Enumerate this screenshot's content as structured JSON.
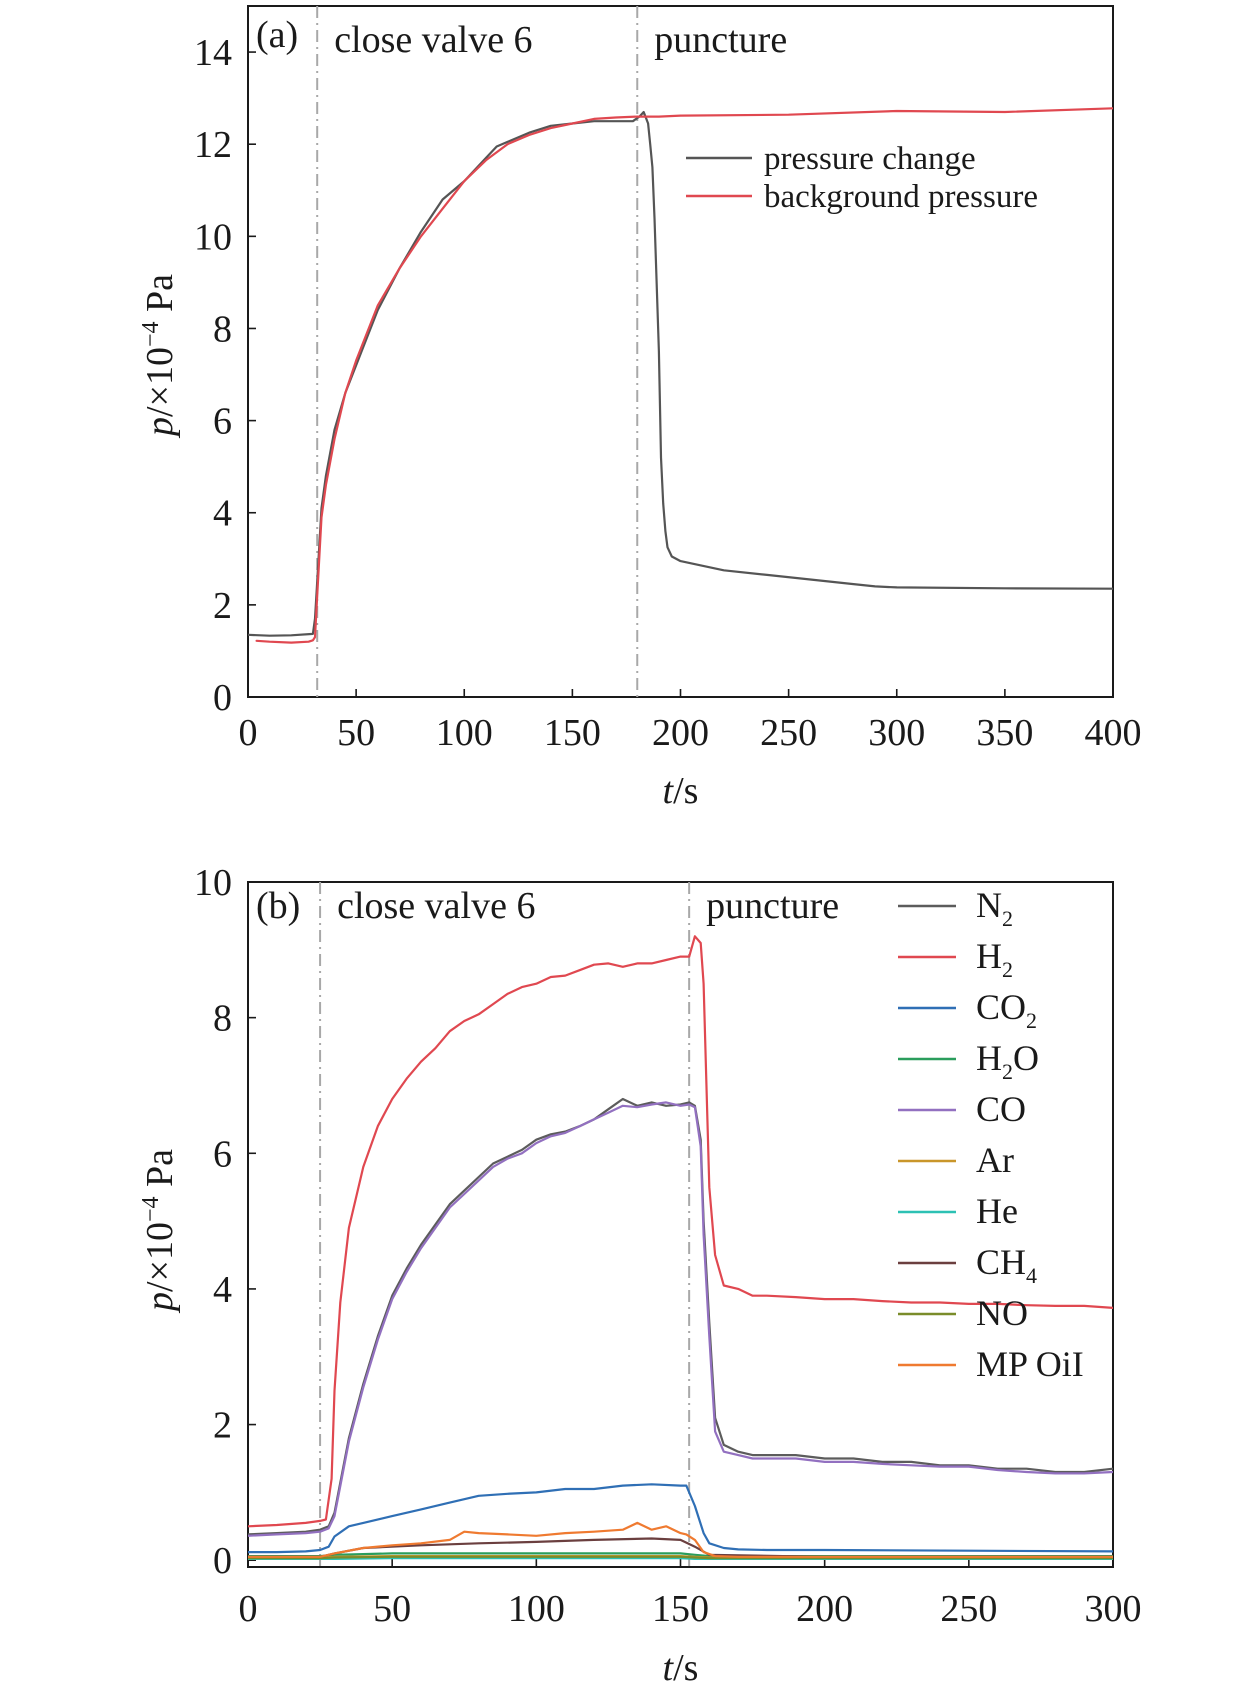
{
  "chart_data": [
    {
      "type": "line",
      "panel_label": "(a)",
      "xlabel_italic": "t",
      "xlabel_rest": "/s",
      "ylabel_italic": "p",
      "ylabel_rest": "/×10",
      "ylabel_exp": "−4",
      "ylabel_unit": " Pa",
      "xlim": [
        0,
        400
      ],
      "ylim": [
        0,
        15
      ],
      "xticks": [
        "0",
        "50",
        "100",
        "150",
        "200",
        "250",
        "300",
        "350",
        "400"
      ],
      "yticks": [
        "0",
        "2",
        "4",
        "6",
        "8",
        "10",
        "12",
        "14"
      ],
      "annotations": [
        {
          "label": "close valve 6",
          "x": 32
        },
        {
          "label": "puncture",
          "x": 180
        }
      ],
      "legend": {
        "position": "top-right"
      },
      "series": [
        {
          "name": "pressure change",
          "color": "#555555",
          "x": [
            0,
            10,
            20,
            30,
            31,
            32,
            34,
            36,
            38,
            40,
            45,
            50,
            55,
            60,
            70,
            80,
            90,
            100,
            110,
            115,
            120,
            130,
            140,
            150,
            160,
            170,
            178,
            181,
            183,
            185,
            186,
            187,
            188,
            190,
            191,
            192,
            193,
            194,
            196,
            200,
            210,
            220,
            240,
            260,
            280,
            290,
            300,
            350,
            400
          ],
          "y": [
            1.35,
            1.33,
            1.34,
            1.37,
            1.7,
            2.5,
            4.1,
            4.8,
            5.3,
            5.8,
            6.6,
            7.2,
            7.8,
            8.4,
            9.3,
            10.1,
            10.8,
            11.2,
            11.7,
            11.95,
            12.05,
            12.25,
            12.4,
            12.45,
            12.5,
            12.5,
            12.5,
            12.6,
            12.7,
            12.45,
            12.0,
            11.5,
            10.4,
            7.5,
            5.2,
            4.2,
            3.6,
            3.25,
            3.05,
            2.95,
            2.85,
            2.75,
            2.65,
            2.55,
            2.45,
            2.4,
            2.38,
            2.36,
            2.35
          ]
        },
        {
          "name": "background pressure",
          "color": "#e04850",
          "x": [
            4,
            10,
            20,
            28,
            30,
            31,
            32,
            34,
            36,
            38,
            40,
            45,
            50,
            55,
            60,
            70,
            80,
            90,
            100,
            110,
            120,
            130,
            140,
            150,
            160,
            170,
            180,
            190,
            200,
            250,
            300,
            350,
            400
          ],
          "y": [
            1.22,
            1.2,
            1.18,
            1.2,
            1.23,
            1.3,
            2.2,
            3.9,
            4.6,
            5.1,
            5.6,
            6.6,
            7.3,
            7.9,
            8.5,
            9.3,
            10.0,
            10.6,
            11.2,
            11.65,
            12.0,
            12.2,
            12.35,
            12.45,
            12.55,
            12.58,
            12.6,
            12.6,
            12.62,
            12.64,
            12.72,
            12.7,
            12.78
          ]
        }
      ]
    },
    {
      "type": "line",
      "panel_label": "(b)",
      "xlabel_italic": "t",
      "xlabel_rest": "/s",
      "ylabel_italic": "p",
      "ylabel_rest": "/×10",
      "ylabel_exp": "−4",
      "ylabel_unit": " Pa",
      "xlim": [
        0,
        300
      ],
      "ylim": [
        -0.1,
        10
      ],
      "xticks": [
        "0",
        "50",
        "100",
        "150",
        "200",
        "250",
        "300"
      ],
      "yticks": [
        "0",
        "2",
        "4",
        "6",
        "8",
        "10"
      ],
      "annotations": [
        {
          "label": "close valve 6",
          "x": 25
        },
        {
          "label": "puncture",
          "x": 153
        }
      ],
      "legend": {
        "position": "top-right"
      },
      "series": [
        {
          "name": "N",
          "sub": "2",
          "suffix": "",
          "color": "#5c5c5c",
          "x": [
            0,
            10,
            20,
            25,
            28,
            30,
            35,
            40,
            45,
            50,
            55,
            60,
            65,
            70,
            75,
            80,
            85,
            90,
            95,
            100,
            105,
            110,
            115,
            120,
            125,
            130,
            135,
            140,
            145,
            150,
            153,
            155,
            157,
            158,
            160,
            162,
            165,
            170,
            175,
            180,
            190,
            200,
            210,
            220,
            230,
            240,
            250,
            260,
            270,
            280,
            290,
            300
          ],
          "y": [
            0.38,
            0.4,
            0.42,
            0.45,
            0.5,
            0.7,
            1.8,
            2.6,
            3.3,
            3.9,
            4.3,
            4.65,
            4.95,
            5.25,
            5.45,
            5.65,
            5.85,
            5.95,
            6.05,
            6.2,
            6.28,
            6.32,
            6.4,
            6.5,
            6.65,
            6.8,
            6.7,
            6.75,
            6.7,
            6.72,
            6.75,
            6.7,
            6.2,
            5.0,
            3.5,
            2.1,
            1.7,
            1.6,
            1.55,
            1.55,
            1.55,
            1.5,
            1.5,
            1.45,
            1.45,
            1.4,
            1.4,
            1.35,
            1.35,
            1.3,
            1.3,
            1.35
          ]
        },
        {
          "name": "H",
          "sub": "2",
          "suffix": "",
          "color": "#e04850",
          "x": [
            0,
            10,
            20,
            25,
            27,
            29,
            30,
            32,
            35,
            40,
            45,
            50,
            55,
            60,
            65,
            70,
            75,
            80,
            85,
            90,
            95,
            100,
            105,
            110,
            115,
            120,
            125,
            130,
            135,
            140,
            145,
            150,
            153,
            155,
            157,
            158,
            160,
            162,
            165,
            170,
            175,
            180,
            190,
            200,
            210,
            220,
            230,
            240,
            250,
            260,
            270,
            280,
            290,
            300
          ],
          "y": [
            0.5,
            0.52,
            0.55,
            0.58,
            0.6,
            1.2,
            2.5,
            3.8,
            4.9,
            5.8,
            6.4,
            6.8,
            7.1,
            7.35,
            7.55,
            7.8,
            7.95,
            8.05,
            8.2,
            8.35,
            8.45,
            8.5,
            8.6,
            8.62,
            8.7,
            8.78,
            8.8,
            8.75,
            8.8,
            8.8,
            8.85,
            8.9,
            8.9,
            9.2,
            9.1,
            8.5,
            5.5,
            4.5,
            4.05,
            4.0,
            3.9,
            3.9,
            3.88,
            3.85,
            3.85,
            3.82,
            3.8,
            3.8,
            3.78,
            3.78,
            3.76,
            3.75,
            3.75,
            3.72
          ]
        },
        {
          "name": "CO",
          "sub": "2",
          "suffix": "",
          "color": "#2f6fb5",
          "x": [
            0,
            10,
            20,
            25,
            28,
            30,
            35,
            40,
            50,
            60,
            70,
            80,
            90,
            100,
            110,
            120,
            130,
            140,
            150,
            152,
            155,
            158,
            160,
            165,
            170,
            180,
            200,
            250,
            300
          ],
          "y": [
            0.12,
            0.12,
            0.13,
            0.15,
            0.2,
            0.35,
            0.5,
            0.55,
            0.65,
            0.75,
            0.85,
            0.95,
            0.98,
            1.0,
            1.05,
            1.05,
            1.1,
            1.12,
            1.1,
            1.1,
            0.8,
            0.4,
            0.25,
            0.18,
            0.16,
            0.15,
            0.15,
            0.14,
            0.13
          ]
        },
        {
          "name": "H",
          "sub": "2",
          "suffix": "O",
          "color": "#2a9d5c",
          "x": [
            0,
            25,
            30,
            50,
            100,
            150,
            155,
            160,
            200,
            250,
            300
          ],
          "y": [
            0.06,
            0.06,
            0.08,
            0.1,
            0.1,
            0.1,
            0.08,
            0.06,
            0.06,
            0.06,
            0.06
          ]
        },
        {
          "name": "CO",
          "sub": "",
          "suffix": "",
          "color": "#9270c0",
          "x": [
            0,
            10,
            20,
            25,
            28,
            30,
            35,
            40,
            45,
            50,
            55,
            60,
            65,
            70,
            75,
            80,
            85,
            90,
            95,
            100,
            105,
            110,
            115,
            120,
            125,
            130,
            135,
            140,
            145,
            150,
            153,
            155,
            157,
            158,
            160,
            162,
            165,
            170,
            175,
            180,
            190,
            200,
            210,
            220,
            230,
            240,
            250,
            260,
            270,
            280,
            290,
            300
          ],
          "y": [
            0.36,
            0.38,
            0.4,
            0.42,
            0.47,
            0.65,
            1.75,
            2.55,
            3.25,
            3.85,
            4.25,
            4.6,
            4.9,
            5.2,
            5.4,
            5.6,
            5.8,
            5.92,
            6.0,
            6.15,
            6.25,
            6.3,
            6.4,
            6.5,
            6.6,
            6.7,
            6.68,
            6.72,
            6.75,
            6.7,
            6.72,
            6.68,
            6.1,
            4.8,
            3.3,
            1.9,
            1.6,
            1.55,
            1.5,
            1.5,
            1.5,
            1.45,
            1.45,
            1.42,
            1.4,
            1.38,
            1.38,
            1.33,
            1.3,
            1.28,
            1.28,
            1.3
          ]
        },
        {
          "name": "Ar",
          "sub": "",
          "suffix": "",
          "color": "#c9962a",
          "x": [
            0,
            25,
            30,
            50,
            100,
            150,
            155,
            160,
            200,
            300
          ],
          "y": [
            0.04,
            0.04,
            0.05,
            0.06,
            0.06,
            0.06,
            0.05,
            0.04,
            0.04,
            0.04
          ]
        },
        {
          "name": "He",
          "sub": "",
          "suffix": "",
          "color": "#2cc1b4",
          "x": [
            0,
            25,
            30,
            50,
            100,
            150,
            155,
            160,
            200,
            300
          ],
          "y": [
            0.02,
            0.02,
            0.02,
            0.03,
            0.03,
            0.03,
            0.02,
            0.02,
            0.02,
            0.02
          ]
        },
        {
          "name": "CH",
          "sub": "4",
          "suffix": "",
          "color": "#6b3f3f",
          "x": [
            0,
            25,
            30,
            40,
            60,
            80,
            100,
            120,
            140,
            150,
            155,
            160,
            200,
            300
          ],
          "y": [
            0.05,
            0.05,
            0.1,
            0.18,
            0.22,
            0.25,
            0.27,
            0.3,
            0.32,
            0.3,
            0.2,
            0.08,
            0.05,
            0.05
          ]
        },
        {
          "name": "NO",
          "sub": "",
          "suffix": "",
          "color": "#7a8c2a",
          "x": [
            0,
            25,
            30,
            50,
            100,
            150,
            155,
            160,
            200,
            300
          ],
          "y": [
            0.03,
            0.03,
            0.04,
            0.05,
            0.05,
            0.05,
            0.04,
            0.03,
            0.03,
            0.03
          ]
        },
        {
          "name": "MP OiI",
          "sub": "",
          "suffix": "",
          "color": "#ef7a30",
          "x": [
            0,
            25,
            30,
            40,
            50,
            60,
            70,
            75,
            80,
            90,
            100,
            110,
            120,
            130,
            135,
            140,
            145,
            150,
            152,
            155,
            158,
            162,
            170,
            200,
            300
          ],
          "y": [
            0.05,
            0.05,
            0.1,
            0.18,
            0.22,
            0.25,
            0.3,
            0.42,
            0.4,
            0.38,
            0.36,
            0.4,
            0.42,
            0.45,
            0.55,
            0.45,
            0.5,
            0.4,
            0.38,
            0.3,
            0.12,
            0.06,
            0.05,
            0.05,
            0.05
          ]
        }
      ]
    }
  ]
}
